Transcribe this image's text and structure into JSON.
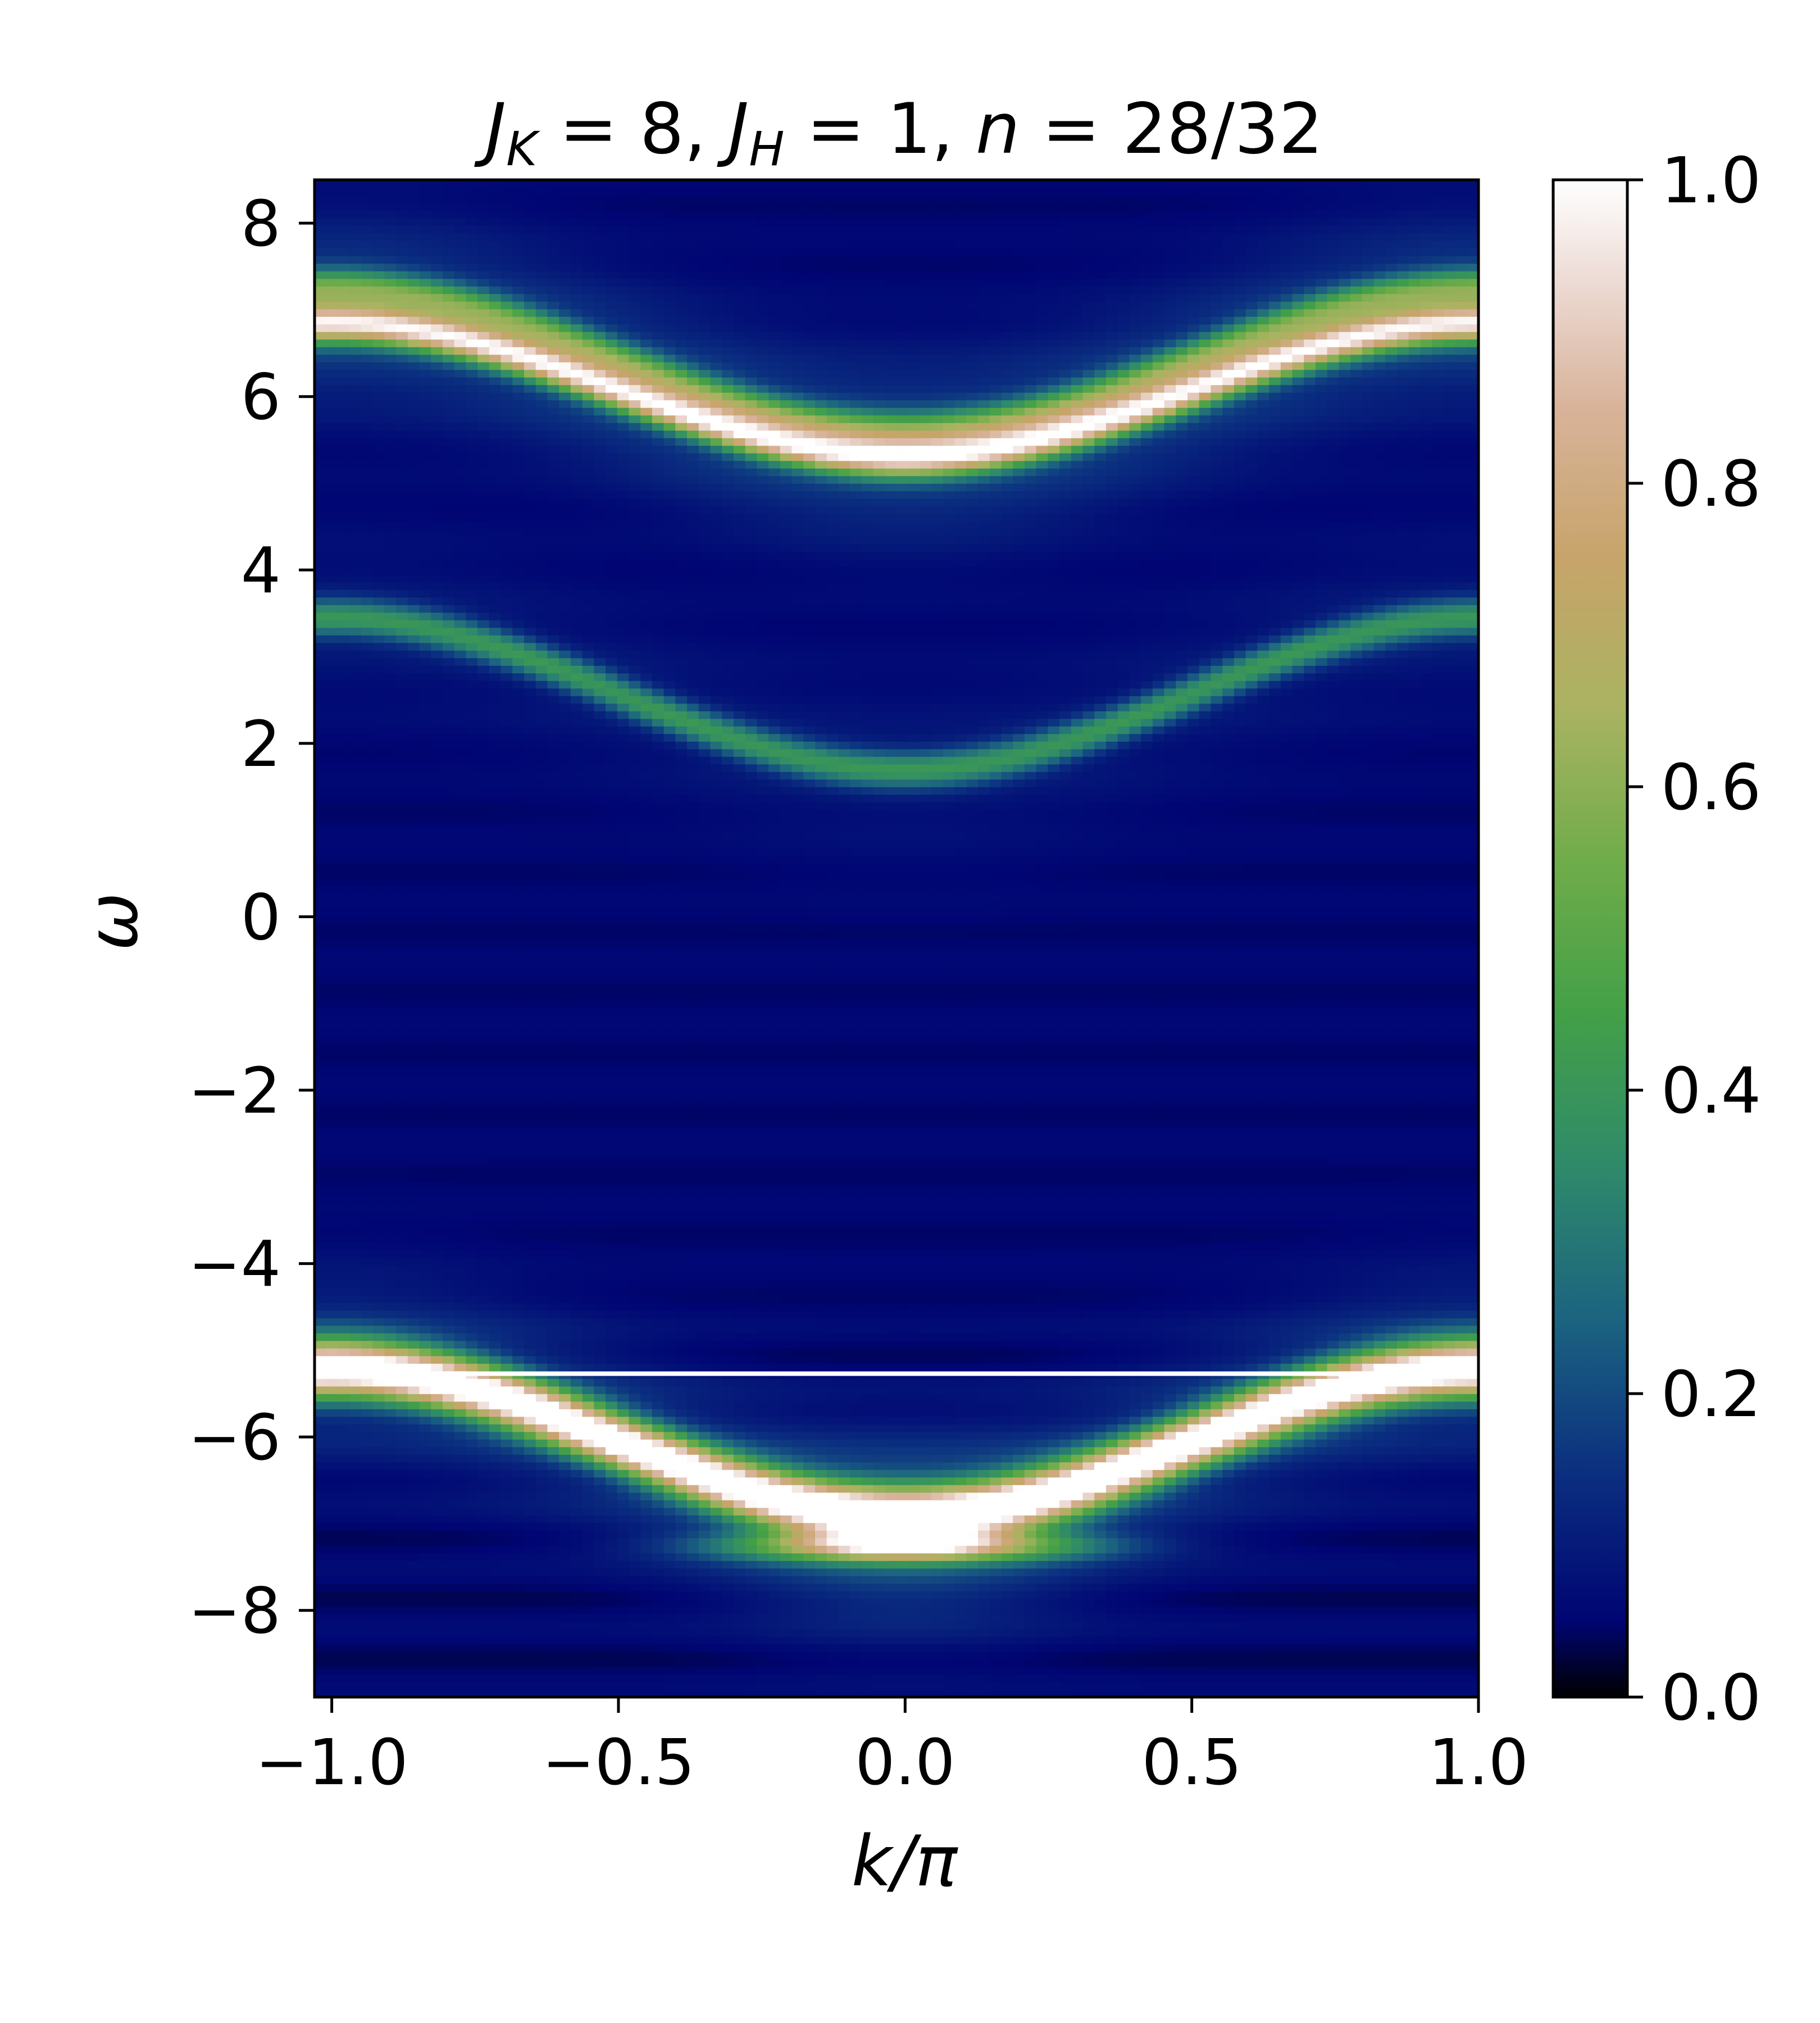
{
  "colors": {
    "background": "#ffffff",
    "axes": "#000000",
    "colormap_stops": [
      [
        0.0,
        "#000000"
      ],
      [
        0.05,
        "#000573"
      ],
      [
        0.15,
        "#0b3080"
      ],
      [
        0.25,
        "#1c6480"
      ],
      [
        0.35,
        "#2f8a6a"
      ],
      [
        0.45,
        "#43a047"
      ],
      [
        0.55,
        "#6fac4a"
      ],
      [
        0.65,
        "#a9b361"
      ],
      [
        0.75,
        "#c7a46a"
      ],
      [
        0.85,
        "#d8b39a"
      ],
      [
        0.93,
        "#ecd9d2"
      ],
      [
        1.0,
        "#ffffff"
      ]
    ]
  },
  "chart_data": {
    "type": "heatmap",
    "title": {
      "parts": [
        {
          "t": "J",
          "italic": true
        },
        {
          "t": "K",
          "italic": true,
          "sub": true
        },
        {
          "t": " = 8, "
        },
        {
          "t": "J",
          "italic": true
        },
        {
          "t": "H",
          "italic": true,
          "sub": true
        },
        {
          "t": " = 1, "
        },
        {
          "t": "n",
          "italic": true
        },
        {
          "t": " = 28/32"
        }
      ]
    },
    "xlabel": "k/π",
    "ylabel": "ω",
    "xlim": [
      -1.03,
      1.0
    ],
    "ylim": [
      -9.0,
      8.5
    ],
    "xticks": [
      -1.0,
      -0.5,
      0.0,
      0.5,
      1.0
    ],
    "xtick_labels": [
      "−1.0",
      "−0.5",
      "0.0",
      "0.5",
      "1.0"
    ],
    "yticks": [
      8,
      6,
      4,
      2,
      0,
      -2,
      -4,
      -6,
      -8
    ],
    "ytick_labels": [
      "8",
      "6",
      "4",
      "2",
      "0",
      "−2",
      "−4",
      "−6",
      "−8"
    ],
    "colorbar": {
      "range": [
        0.0,
        1.0
      ],
      "ticks": [
        0.0,
        0.2,
        0.4,
        0.6,
        0.8,
        1.0
      ],
      "tick_labels": [
        "0.0",
        "0.2",
        "0.4",
        "0.6",
        "0.8",
        "1.0"
      ]
    },
    "grid": false,
    "background_intensity": 0.05,
    "bands": [
      {
        "omega_at_k0": -6.9,
        "omega_at_k1": -5.2,
        "peak": 1.0,
        "width": 0.22
      },
      {
        "omega_at_k0": -7.25,
        "omega_at_k1": -7.25,
        "peak": 0.7,
        "width": 0.12,
        "k_extent": 0.2
      },
      {
        "omega_at_k0": 1.7,
        "omega_at_k1": 3.45,
        "peak": 0.32,
        "width": 0.15
      },
      {
        "omega_at_k0": 5.3,
        "omega_at_k1": 6.85,
        "peak": 0.8,
        "width": 0.15
      },
      {
        "omega_at_k0": 5.6,
        "omega_at_k1": 7.25,
        "peak": 0.4,
        "width": 0.15
      }
    ],
    "horizontal_line": {
      "omega": -5.27,
      "color": "#ffffff"
    }
  }
}
